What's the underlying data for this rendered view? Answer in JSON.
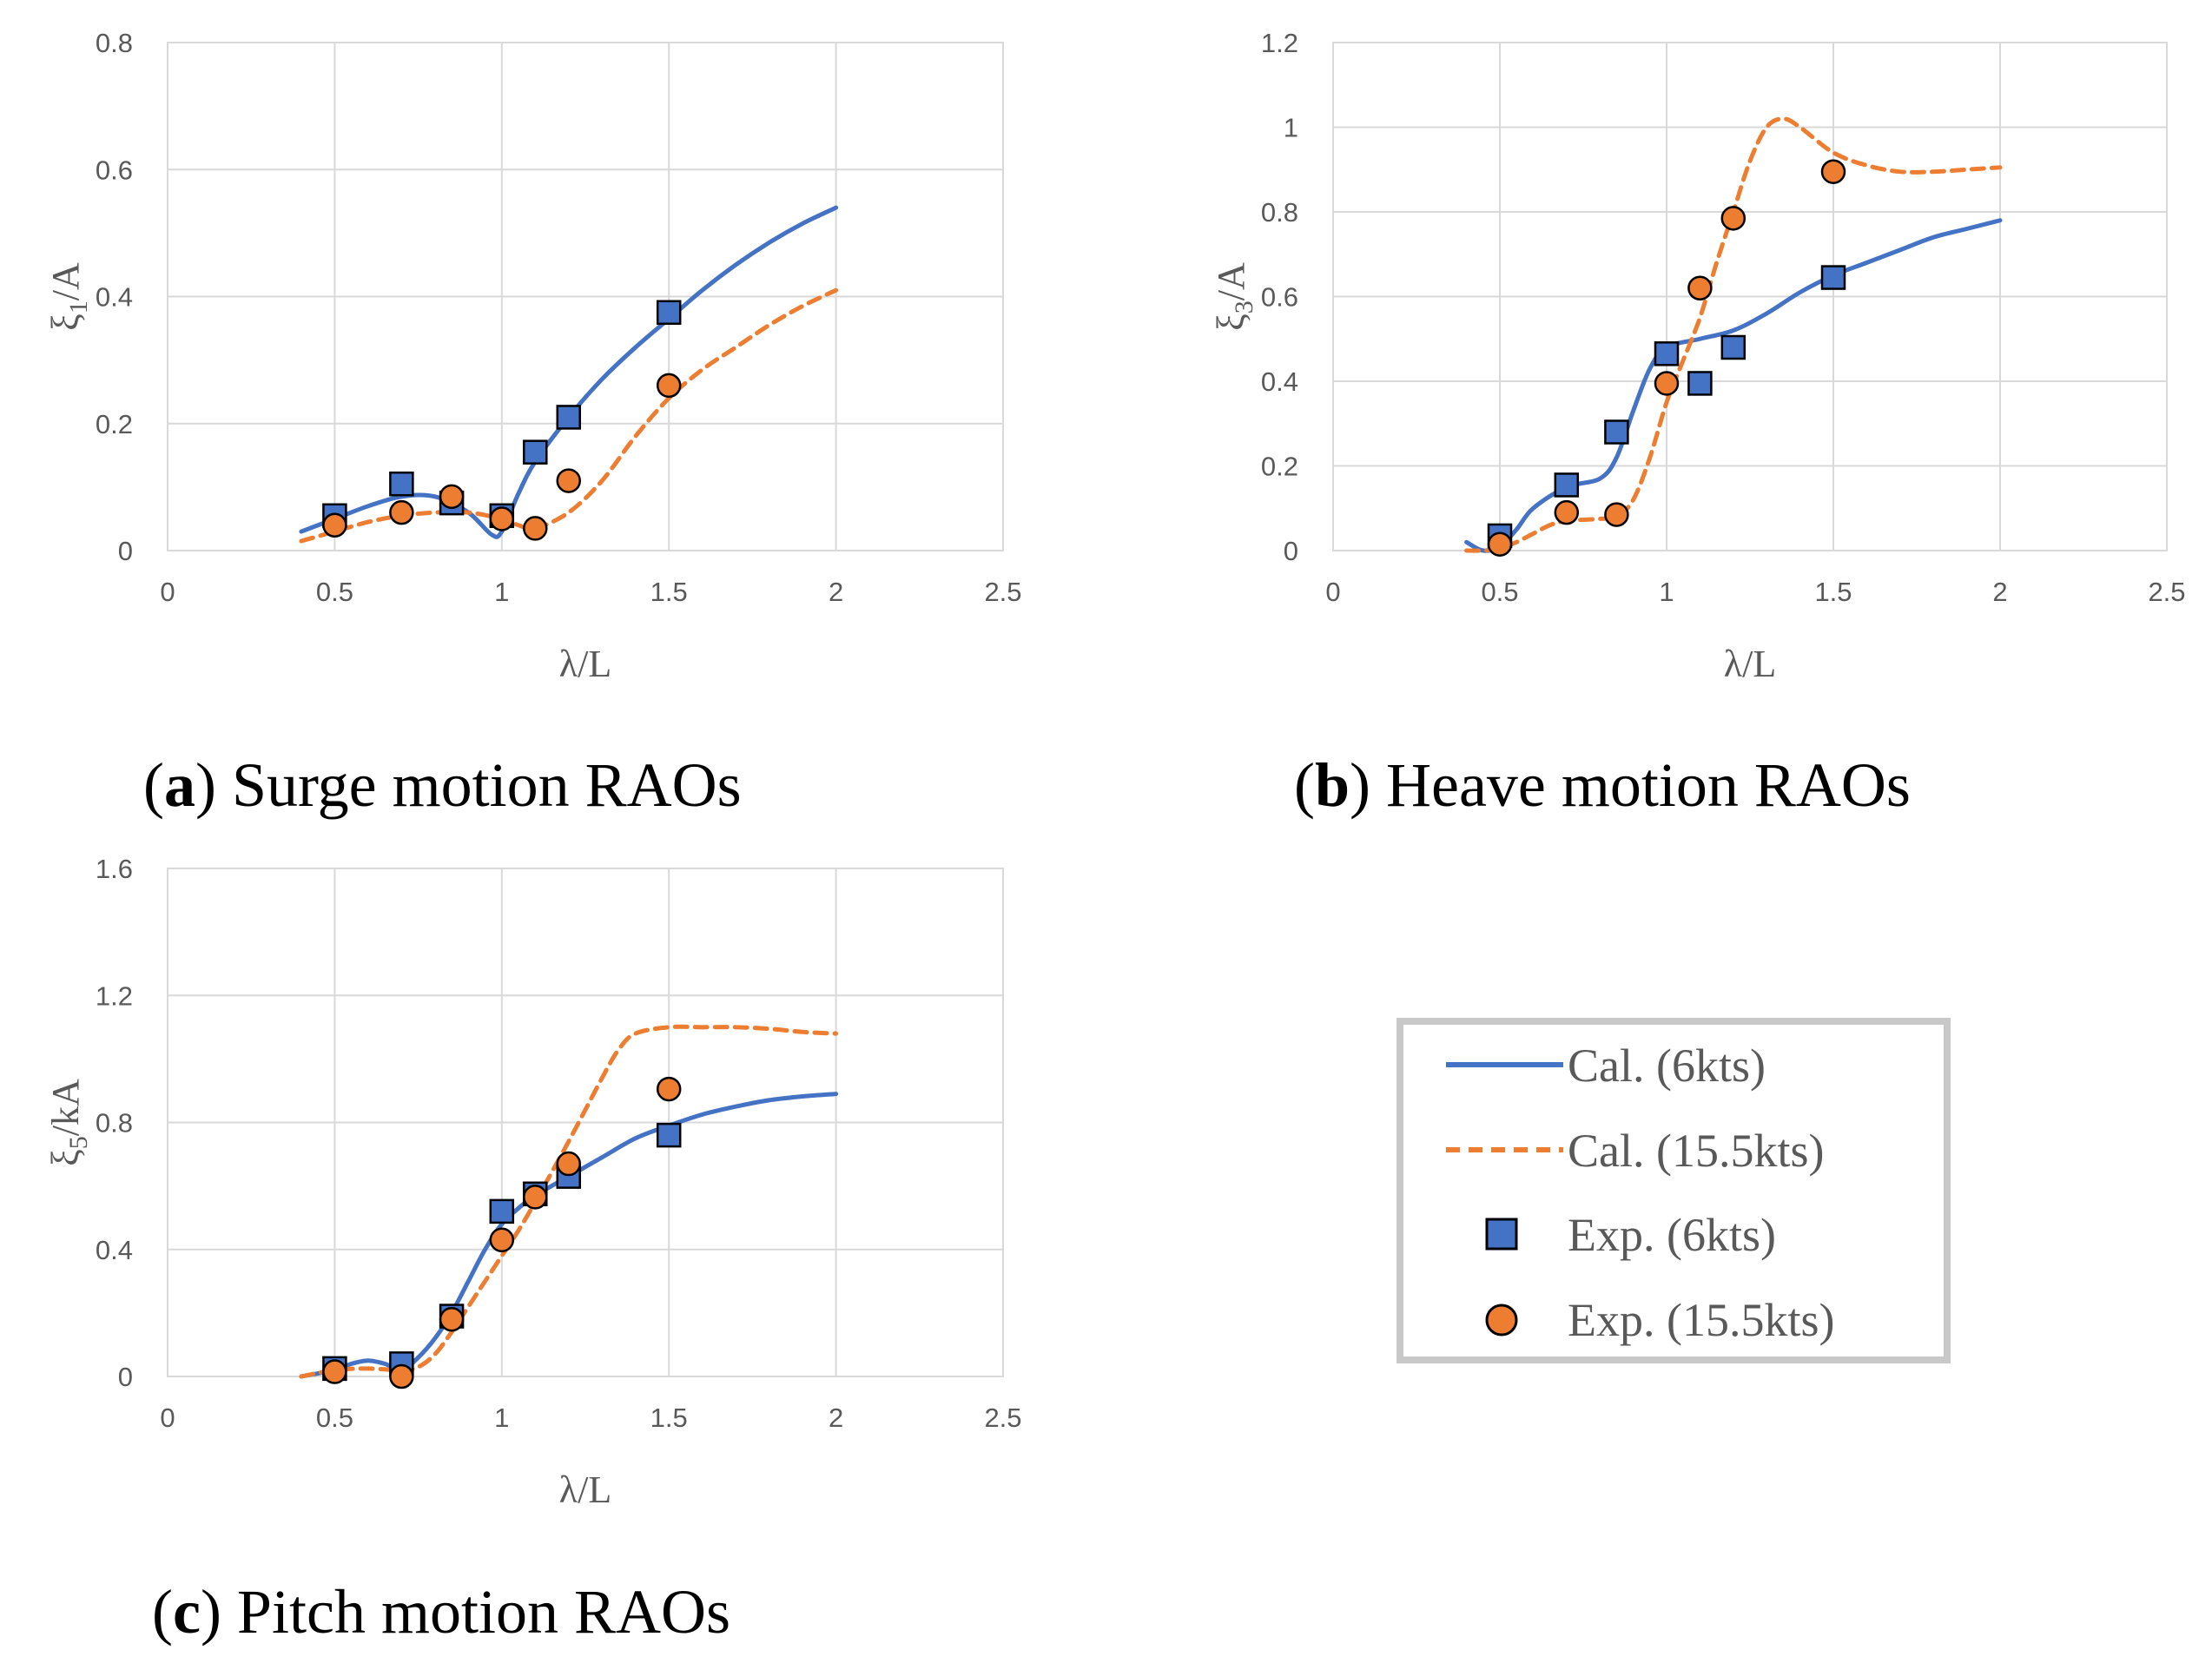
{
  "colors": {
    "cal_6kts": "#4472C4",
    "cal_15_5kts": "#ED7D31",
    "exp_6kts": "#4472C4",
    "exp_15_5kts": "#ED7D31",
    "grid": "#D9D9D9",
    "text": "#595959"
  },
  "legend": {
    "items": [
      {
        "label": "Cal. (6kts)",
        "symbol": "line-solid"
      },
      {
        "label": "Cal. (15.5kts)",
        "symbol": "line-dashed"
      },
      {
        "label": "Exp. (6kts)",
        "symbol": "square"
      },
      {
        "label": "Exp. (15.5kts)",
        "symbol": "circle"
      }
    ]
  },
  "chart_data": [
    {
      "type": "line",
      "caption_letter": "a",
      "caption_rest": ") Surge motion RAOs",
      "caption_open": "(",
      "xlabel": "λ/L",
      "ylabel_main": "ξ",
      "ylabel_sub": "1",
      "ylabel_tail": "/A",
      "xlim": [
        0,
        2.5
      ],
      "ylim": [
        0,
        0.8
      ],
      "xticks": [
        "0",
        "0.5",
        "1",
        "1.5",
        "2",
        "2.5"
      ],
      "yticks": [
        "0",
        "0.2",
        "0.4",
        "0.6",
        "0.8"
      ],
      "grid": true,
      "series": [
        {
          "name": "Cal. (6kts)",
          "style": "solid",
          "x": [
            0.4,
            0.5,
            0.6,
            0.7,
            0.8,
            0.9,
            0.97,
            1.0,
            1.05,
            1.1,
            1.2,
            1.3,
            1.4,
            1.5,
            1.6,
            1.7,
            1.8,
            1.9,
            2.0
          ],
          "y": [
            0.03,
            0.05,
            0.07,
            0.085,
            0.085,
            0.06,
            0.025,
            0.03,
            0.09,
            0.14,
            0.21,
            0.27,
            0.32,
            0.365,
            0.41,
            0.45,
            0.485,
            0.515,
            0.54
          ]
        },
        {
          "name": "Cal. (15.5kts)",
          "style": "dashed",
          "x": [
            0.4,
            0.5,
            0.6,
            0.7,
            0.8,
            0.9,
            1.0,
            1.05,
            1.1,
            1.2,
            1.3,
            1.4,
            1.5,
            1.6,
            1.7,
            1.8,
            1.9,
            2.0
          ],
          "y": [
            0.015,
            0.03,
            0.045,
            0.055,
            0.06,
            0.06,
            0.05,
            0.04,
            0.035,
            0.06,
            0.11,
            0.18,
            0.24,
            0.285,
            0.32,
            0.355,
            0.385,
            0.41
          ]
        },
        {
          "name": "Exp. (6kts)",
          "style": "square",
          "x": [
            0.5,
            0.7,
            0.85,
            1.0,
            1.1,
            1.2,
            1.5
          ],
          "y": [
            0.055,
            0.105,
            0.075,
            0.055,
            0.155,
            0.21,
            0.375
          ]
        },
        {
          "name": "Exp. (15.5kts)",
          "style": "circle",
          "x": [
            0.5,
            0.7,
            0.85,
            1.0,
            1.1,
            1.2,
            1.5
          ],
          "y": [
            0.04,
            0.06,
            0.085,
            0.05,
            0.035,
            0.11,
            0.26
          ]
        }
      ]
    },
    {
      "type": "line",
      "caption_letter": "b",
      "caption_rest": ") Heave motion RAOs",
      "caption_open": "(",
      "xlabel": "λ/L",
      "ylabel_main": "ξ",
      "ylabel_sub": "3",
      "ylabel_tail": "/A",
      "xlim": [
        0,
        2.5
      ],
      "ylim": [
        0,
        1.2
      ],
      "xticks": [
        "0",
        "0.5",
        "1",
        "1.5",
        "2",
        "2.5"
      ],
      "yticks": [
        "0",
        "0.2",
        "0.4",
        "0.6",
        "0.8",
        "1",
        "1.2"
      ],
      "grid": true,
      "series": [
        {
          "name": "Cal. (6kts)",
          "style": "solid",
          "x": [
            0.4,
            0.45,
            0.5,
            0.55,
            0.6,
            0.7,
            0.8,
            0.85,
            0.9,
            0.95,
            1.0,
            1.1,
            1.2,
            1.3,
            1.4,
            1.5,
            1.6,
            1.7,
            1.8,
            1.9,
            2.0
          ],
          "y": [
            0.02,
            0.0,
            0.01,
            0.05,
            0.1,
            0.15,
            0.17,
            0.22,
            0.33,
            0.43,
            0.48,
            0.5,
            0.52,
            0.56,
            0.61,
            0.65,
            0.68,
            0.71,
            0.74,
            0.76,
            0.78
          ]
        },
        {
          "name": "Cal. (15.5kts)",
          "style": "dashed",
          "x": [
            0.4,
            0.45,
            0.5,
            0.55,
            0.6,
            0.65,
            0.7,
            0.8,
            0.85,
            0.9,
            0.95,
            1.0,
            1.05,
            1.1,
            1.15,
            1.2,
            1.25,
            1.3,
            1.35,
            1.4,
            1.5,
            1.6,
            1.7,
            1.8,
            1.9,
            2.0
          ],
          "y": [
            0.0,
            0.0,
            0.005,
            0.02,
            0.04,
            0.06,
            0.07,
            0.075,
            0.08,
            0.12,
            0.22,
            0.35,
            0.45,
            0.55,
            0.68,
            0.8,
            0.92,
            1.0,
            1.02,
            1.0,
            0.94,
            0.91,
            0.895,
            0.895,
            0.9,
            0.905
          ]
        },
        {
          "name": "Exp. (6kts)",
          "style": "square",
          "x": [
            0.5,
            0.7,
            0.85,
            1.0,
            1.1,
            1.2,
            1.5
          ],
          "y": [
            0.035,
            0.155,
            0.28,
            0.465,
            0.395,
            0.48,
            0.645
          ]
        },
        {
          "name": "Exp. (15.5kts)",
          "style": "circle",
          "x": [
            0.5,
            0.7,
            0.85,
            1.0,
            1.1,
            1.2,
            1.5
          ],
          "y": [
            0.015,
            0.09,
            0.085,
            0.395,
            0.62,
            0.785,
            0.895
          ]
        }
      ]
    },
    {
      "type": "line",
      "caption_letter": "c",
      "caption_rest": ") Pitch motion RAOs",
      "caption_open": "(",
      "xlabel": "λ/L",
      "ylabel_main": "ξ",
      "ylabel_sub": "5",
      "ylabel_tail": "/kA",
      "xlim": [
        0,
        2.5
      ],
      "ylim": [
        0,
        1.6
      ],
      "xticks": [
        "0",
        "0.5",
        "1",
        "1.5",
        "2",
        "2.5"
      ],
      "yticks": [
        "0",
        "0.4",
        "0.8",
        "1.2",
        "1.6"
      ],
      "grid": true,
      "series": [
        {
          "name": "Cal. (6kts)",
          "style": "solid",
          "x": [
            0.4,
            0.5,
            0.55,
            0.6,
            0.65,
            0.7,
            0.75,
            0.8,
            0.85,
            0.9,
            0.95,
            1.0,
            1.05,
            1.1,
            1.2,
            1.3,
            1.4,
            1.5,
            1.6,
            1.7,
            1.8,
            1.9,
            2.0
          ],
          "y": [
            0.0,
            0.02,
            0.04,
            0.05,
            0.04,
            0.02,
            0.06,
            0.12,
            0.2,
            0.3,
            0.4,
            0.48,
            0.53,
            0.57,
            0.63,
            0.69,
            0.75,
            0.79,
            0.825,
            0.85,
            0.87,
            0.882,
            0.89
          ]
        },
        {
          "name": "Cal. (15.5kts)",
          "style": "dashed",
          "x": [
            0.4,
            0.5,
            0.6,
            0.7,
            0.75,
            0.8,
            0.85,
            0.9,
            0.95,
            1.0,
            1.05,
            1.1,
            1.2,
            1.3,
            1.35,
            1.4,
            1.5,
            1.6,
            1.7,
            1.8,
            1.9,
            2.0
          ],
          "y": [
            0.0,
            0.02,
            0.025,
            0.02,
            0.03,
            0.07,
            0.14,
            0.22,
            0.3,
            0.38,
            0.46,
            0.55,
            0.74,
            0.94,
            1.03,
            1.08,
            1.1,
            1.1,
            1.1,
            1.095,
            1.085,
            1.08
          ]
        },
        {
          "name": "Exp. (6kts)",
          "style": "square",
          "x": [
            0.5,
            0.7,
            0.85,
            1.0,
            1.1,
            1.2,
            1.5
          ],
          "y": [
            0.025,
            0.04,
            0.19,
            0.52,
            0.575,
            0.63,
            0.76
          ]
        },
        {
          "name": "Exp. (15.5kts)",
          "style": "circle",
          "x": [
            0.5,
            0.7,
            0.85,
            1.0,
            1.1,
            1.2,
            1.5
          ],
          "y": [
            0.015,
            0.0,
            0.18,
            0.43,
            0.565,
            0.67,
            0.905
          ]
        }
      ]
    }
  ]
}
